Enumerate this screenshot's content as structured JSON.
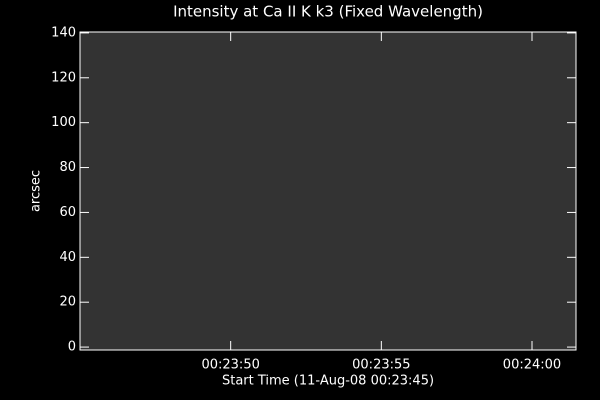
{
  "chart_data": {
    "type": "image",
    "title": "Intensity at Ca II K k3 (Fixed Wavelength)",
    "x_label": "Start Time (11-Aug-08 00:23:45)",
    "y_label": "arcsec",
    "xlim": [
      0,
      16.46
    ],
    "xticks": [
      {
        "value": 5,
        "label": "00:23:50"
      },
      {
        "value": 10,
        "label": "00:23:55"
      },
      {
        "value": 15,
        "label": "00:24:00"
      }
    ],
    "ylim": [
      -1.3,
      140.4
    ],
    "yticks": [
      0,
      20,
      40,
      60,
      80,
      100,
      120,
      140
    ],
    "color": "#333333"
  }
}
